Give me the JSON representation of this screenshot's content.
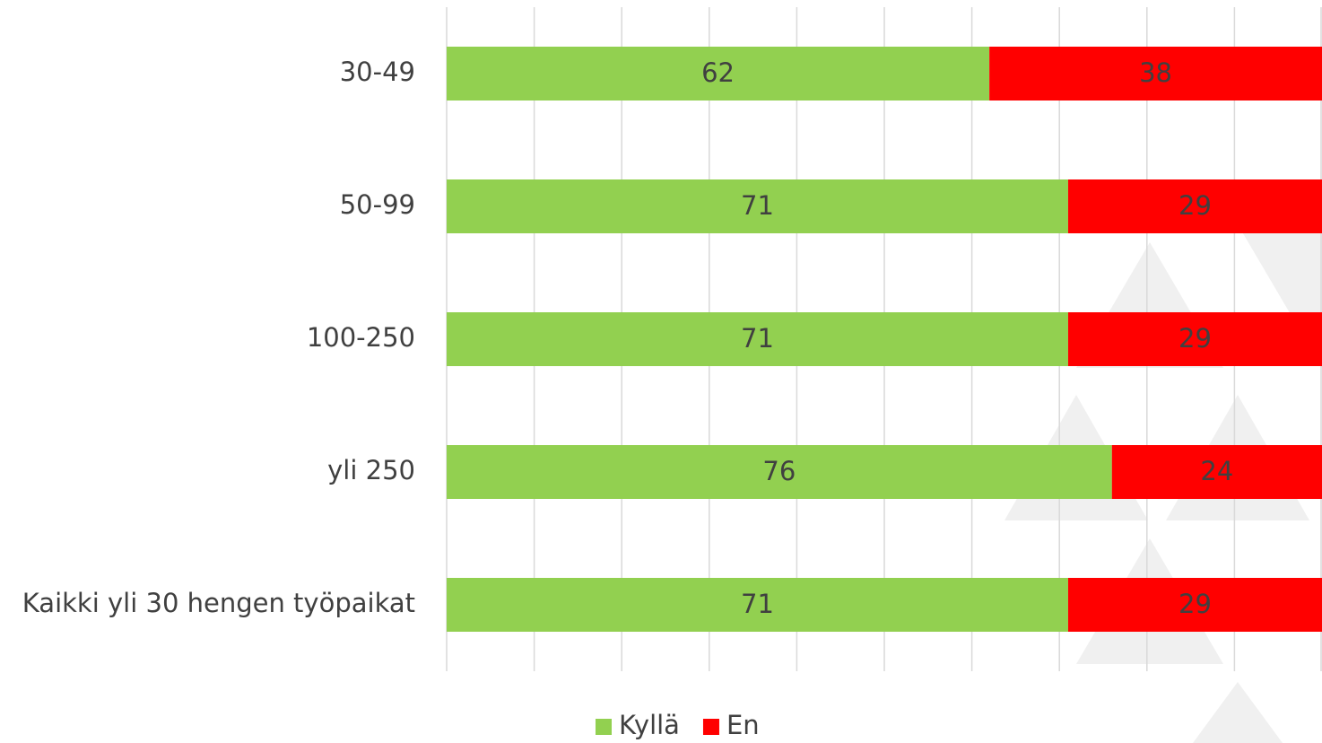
{
  "chart_data": {
    "type": "stacked-bar-horizontal",
    "categories": [
      "30-49",
      "50-99",
      "100-250",
      "yli 250",
      "Kaikki yli 30 hengen työpaikat"
    ],
    "series": [
      {
        "name": "Kyllä",
        "color": "#92d050",
        "values": [
          62,
          71,
          71,
          76,
          71
        ]
      },
      {
        "name": "En",
        "color": "#ff0000",
        "values": [
          38,
          29,
          29,
          24,
          29
        ]
      }
    ],
    "xlim": [
      0,
      100
    ],
    "xticks": [
      0,
      10,
      20,
      30,
      40,
      50,
      60,
      70,
      80,
      90,
      100
    ],
    "grid": true,
    "legend": "bottom"
  }
}
